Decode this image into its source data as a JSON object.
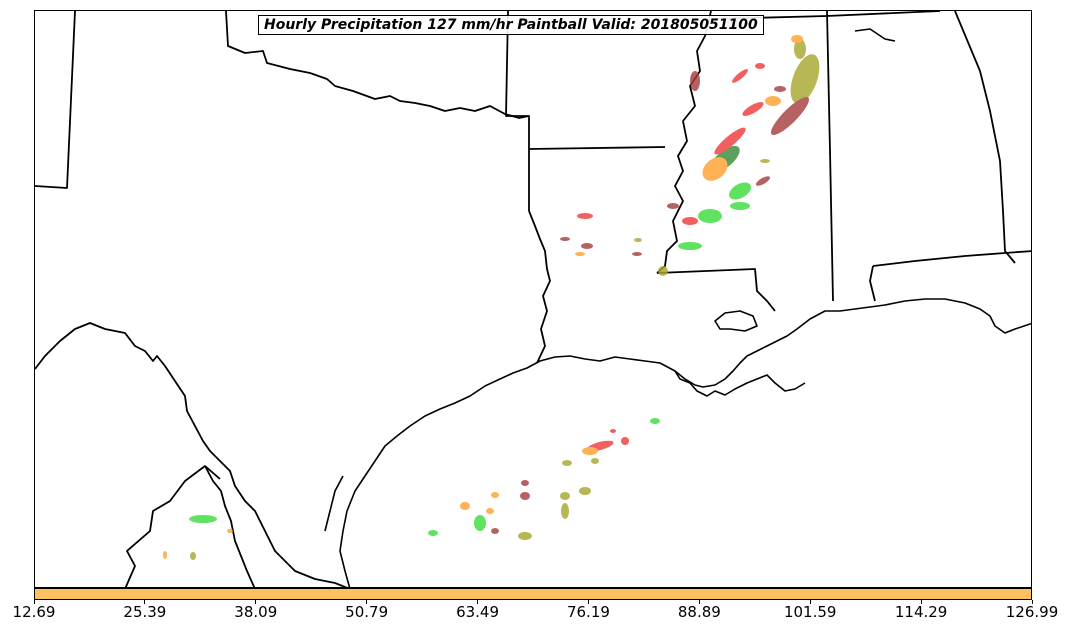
{
  "title": "Hourly Precipitation 127 mm/hr Paintball Valid: 201805051100",
  "colorbar": {
    "color": "#fec15f",
    "tick_labels": [
      "12.69",
      "25.39",
      "38.09",
      "50.79",
      "63.49",
      "76.19",
      "88.89",
      "101.59",
      "114.29",
      "126.99"
    ]
  },
  "paintball_colors": {
    "red": "#f03c3c",
    "dark_red": "#a84040",
    "orange": "#ffa030",
    "olive": "#a8a830",
    "green": "#3cdc3c",
    "dark_green": "#3a8a3a"
  }
}
